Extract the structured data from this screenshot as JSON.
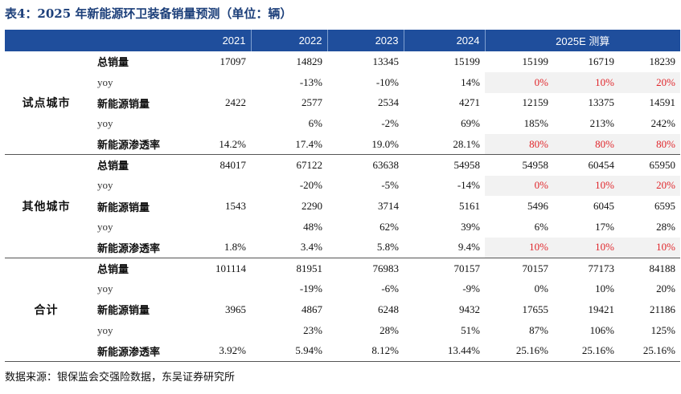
{
  "title": "表4：2025 年新能源环卫装备销量预测（单位：辆）",
  "header": {
    "years": [
      "2021",
      "2022",
      "2023",
      "2024"
    ],
    "estimate_label": "2025E 测算"
  },
  "groups": [
    {
      "name": "试点城市",
      "rows": [
        {
          "label": "总销量",
          "bold": true,
          "highlight": false,
          "values": [
            "17097",
            "14829",
            "13345",
            "15199",
            "15199",
            "16719",
            "18239"
          ]
        },
        {
          "label": "yoy",
          "bold": false,
          "highlight": true,
          "values": [
            "",
            "-13%",
            "-10%",
            "14%",
            "0%",
            "10%",
            "20%"
          ]
        },
        {
          "label": "新能源销量",
          "bold": true,
          "highlight": false,
          "values": [
            "2422",
            "2577",
            "2534",
            "4271",
            "12159",
            "13375",
            "14591"
          ]
        },
        {
          "label": "yoy",
          "bold": false,
          "highlight": false,
          "values": [
            "",
            "6%",
            "-2%",
            "69%",
            "185%",
            "213%",
            "242%"
          ]
        },
        {
          "label": "新能源渗透率",
          "bold": true,
          "highlight": true,
          "values": [
            "14.2%",
            "17.4%",
            "19.0%",
            "28.1%",
            "80%",
            "80%",
            "80%"
          ]
        }
      ]
    },
    {
      "name": "其他城市",
      "rows": [
        {
          "label": "总销量",
          "bold": true,
          "highlight": false,
          "values": [
            "84017",
            "67122",
            "63638",
            "54958",
            "54958",
            "60454",
            "65950"
          ]
        },
        {
          "label": "yoy",
          "bold": false,
          "highlight": true,
          "values": [
            "",
            "-20%",
            "-5%",
            "-14%",
            "0%",
            "10%",
            "20%"
          ]
        },
        {
          "label": "新能源销量",
          "bold": true,
          "highlight": false,
          "values": [
            "1543",
            "2290",
            "3714",
            "5161",
            "5496",
            "6045",
            "6595"
          ]
        },
        {
          "label": "yoy",
          "bold": false,
          "highlight": false,
          "values": [
            "",
            "48%",
            "62%",
            "39%",
            "6%",
            "17%",
            "28%"
          ]
        },
        {
          "label": "新能源渗透率",
          "bold": true,
          "highlight": true,
          "values": [
            "1.8%",
            "3.4%",
            "5.8%",
            "9.4%",
            "10%",
            "10%",
            "10%"
          ]
        }
      ]
    },
    {
      "name": "合计",
      "rows": [
        {
          "label": "总销量",
          "bold": true,
          "highlight": false,
          "values": [
            "101114",
            "81951",
            "76983",
            "70157",
            "70157",
            "77173",
            "84188"
          ]
        },
        {
          "label": "yoy",
          "bold": false,
          "highlight": false,
          "values": [
            "",
            "-19%",
            "-6%",
            "-9%",
            "0%",
            "10%",
            "20%"
          ]
        },
        {
          "label": "新能源销量",
          "bold": true,
          "highlight": false,
          "values": [
            "3965",
            "4867",
            "6248",
            "9432",
            "17655",
            "19421",
            "21186"
          ]
        },
        {
          "label": "yoy",
          "bold": false,
          "highlight": false,
          "values": [
            "",
            "23%",
            "28%",
            "51%",
            "87%",
            "106%",
            "125%"
          ]
        },
        {
          "label": "新能源渗透率",
          "bold": true,
          "highlight": false,
          "values": [
            "3.92%",
            "5.94%",
            "8.12%",
            "13.44%",
            "25.16%",
            "25.16%",
            "25.16%"
          ]
        }
      ]
    }
  ],
  "colors": {
    "header_bg": "#1f4e9c",
    "title": "#1c3f7a",
    "highlight_text": "#e0262b",
    "highlight_bg": "#f2f2f2"
  },
  "source": "数据来源：银保监会交强险数据，东吴证券研究所"
}
